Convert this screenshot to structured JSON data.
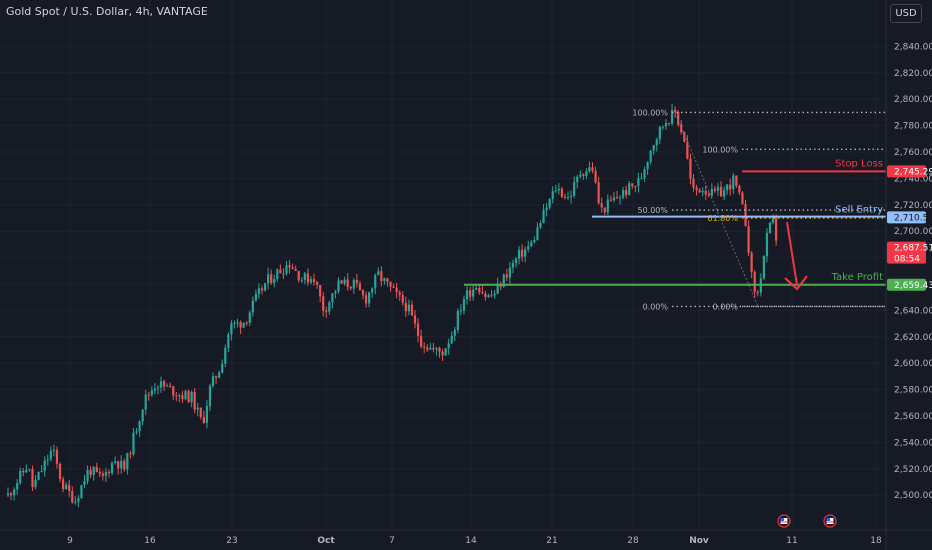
{
  "title": "Gold Spot / U.S. Dollar, 4h, VANTAGE",
  "currency_button": "USD",
  "colors": {
    "up": "#26a69a",
    "down": "#ef5350",
    "background": "#161a25",
    "stop": "#f23645",
    "entry": "#90bff9",
    "profit": "#4caf50"
  },
  "chart_data": {
    "type": "candlestick",
    "ylim": [
      2485,
      2860
    ],
    "y_ticks": [
      2500,
      2520,
      2540,
      2560,
      2580,
      2600,
      2620,
      2640,
      2660,
      2680,
      2700,
      2720,
      2740,
      2760,
      2780,
      2800,
      2820,
      2840
    ],
    "y_tick_labels": [
      "2,500.00",
      "2,520.00",
      "2,540.00",
      "2,560.00",
      "2,580.00",
      "2,600.00",
      "2,620.00",
      "2,640.00",
      "",
      "",
      "2,700.00",
      "2,720.00",
      "2,740.00",
      "2,760.00",
      "2,780.00",
      "2,800.00",
      "2,820.00",
      "2,840.00"
    ],
    "x_ticks": [
      "9",
      "16",
      "23",
      "Oct",
      "7",
      "14",
      "21",
      "28",
      "Nov",
      "11",
      "18"
    ],
    "price_path": [
      {
        "t": 0,
        "p": 2500
      },
      {
        "t": 20,
        "p": 2523
      },
      {
        "t": 25,
        "p": 2506
      },
      {
        "t": 45,
        "p": 2535
      },
      {
        "t": 55,
        "p": 2508
      },
      {
        "t": 68,
        "p": 2496
      },
      {
        "t": 82,
        "p": 2520
      },
      {
        "t": 95,
        "p": 2512
      },
      {
        "t": 108,
        "p": 2527
      },
      {
        "t": 118,
        "p": 2520
      },
      {
        "t": 125,
        "p": 2538
      },
      {
        "t": 138,
        "p": 2572
      },
      {
        "t": 150,
        "p": 2585
      },
      {
        "t": 165,
        "p": 2580
      },
      {
        "t": 175,
        "p": 2576
      },
      {
        "t": 186,
        "p": 2574
      },
      {
        "t": 197,
        "p": 2554
      },
      {
        "t": 205,
        "p": 2582
      },
      {
        "t": 215,
        "p": 2597
      },
      {
        "t": 225,
        "p": 2628
      },
      {
        "t": 240,
        "p": 2632
      },
      {
        "t": 252,
        "p": 2650
      },
      {
        "t": 262,
        "p": 2662
      },
      {
        "t": 275,
        "p": 2670
      },
      {
        "t": 285,
        "p": 2676
      },
      {
        "t": 298,
        "p": 2664
      },
      {
        "t": 310,
        "p": 2665
      },
      {
        "t": 320,
        "p": 2640
      },
      {
        "t": 335,
        "p": 2660
      },
      {
        "t": 350,
        "p": 2660
      },
      {
        "t": 362,
        "p": 2648
      },
      {
        "t": 375,
        "p": 2667
      },
      {
        "t": 390,
        "p": 2654
      },
      {
        "t": 405,
        "p": 2642
      },
      {
        "t": 418,
        "p": 2617
      },
      {
        "t": 430,
        "p": 2610
      },
      {
        "t": 440,
        "p": 2608
      },
      {
        "t": 450,
        "p": 2623
      },
      {
        "t": 462,
        "p": 2650
      },
      {
        "t": 475,
        "p": 2660
      },
      {
        "t": 485,
        "p": 2650
      },
      {
        "t": 492,
        "p": 2652
      },
      {
        "t": 505,
        "p": 2668
      },
      {
        "t": 518,
        "p": 2682
      },
      {
        "t": 530,
        "p": 2690
      },
      {
        "t": 545,
        "p": 2717
      },
      {
        "t": 555,
        "p": 2733
      },
      {
        "t": 568,
        "p": 2725
      },
      {
        "t": 580,
        "p": 2745
      },
      {
        "t": 592,
        "p": 2748
      },
      {
        "t": 600,
        "p": 2715
      },
      {
        "t": 612,
        "p": 2723
      },
      {
        "t": 625,
        "p": 2730
      },
      {
        "t": 640,
        "p": 2738
      },
      {
        "t": 652,
        "p": 2765
      },
      {
        "t": 665,
        "p": 2783
      },
      {
        "t": 676,
        "p": 2790
      },
      {
        "t": 685,
        "p": 2770
      },
      {
        "t": 693,
        "p": 2730
      },
      {
        "t": 703,
        "p": 2733
      },
      {
        "t": 713,
        "p": 2728
      },
      {
        "t": 725,
        "p": 2730
      },
      {
        "t": 735,
        "p": 2739
      },
      {
        "t": 742,
        "p": 2723
      },
      {
        "t": 748,
        "p": 2704
      },
      {
        "t": 754,
        "p": 2660
      },
      {
        "t": 759,
        "p": 2650
      },
      {
        "t": 765,
        "p": 2678
      },
      {
        "t": 770,
        "p": 2700
      },
      {
        "t": 775,
        "p": 2707
      },
      {
        "t": 780,
        "p": 2688
      }
    ],
    "fib_top": {
      "levels": [
        {
          "label": "100.00%",
          "price": 2790
        },
        {
          "label": "50.00%",
          "price": 2716
        },
        {
          "label": "0.00%",
          "price": 2643
        }
      ]
    },
    "fib_right": {
      "levels": [
        {
          "label": "100.00%",
          "price": 2762
        },
        {
          "label": "61.80%",
          "price": 2710
        },
        {
          "label": "0.00%",
          "price": 2643
        }
      ]
    },
    "support_line": {
      "price": 2711
    },
    "annotations": [
      {
        "name": "stop-loss",
        "label": "Stop Loss",
        "price": 2745.29,
        "tag": "2,745.29",
        "color": "#f23645"
      },
      {
        "name": "sell-entry",
        "label": "Sell Entry",
        "price": 2710.52,
        "tag": "2,710.52",
        "color": "#90bff9"
      },
      {
        "name": "take-profit",
        "label": "Take Profit",
        "price": 2659.43,
        "tag": "2,659.43",
        "color": "#4caf50"
      }
    ],
    "last_price": {
      "price": "2,687.51",
      "countdown": "08:54",
      "value": 2687.51
    }
  }
}
